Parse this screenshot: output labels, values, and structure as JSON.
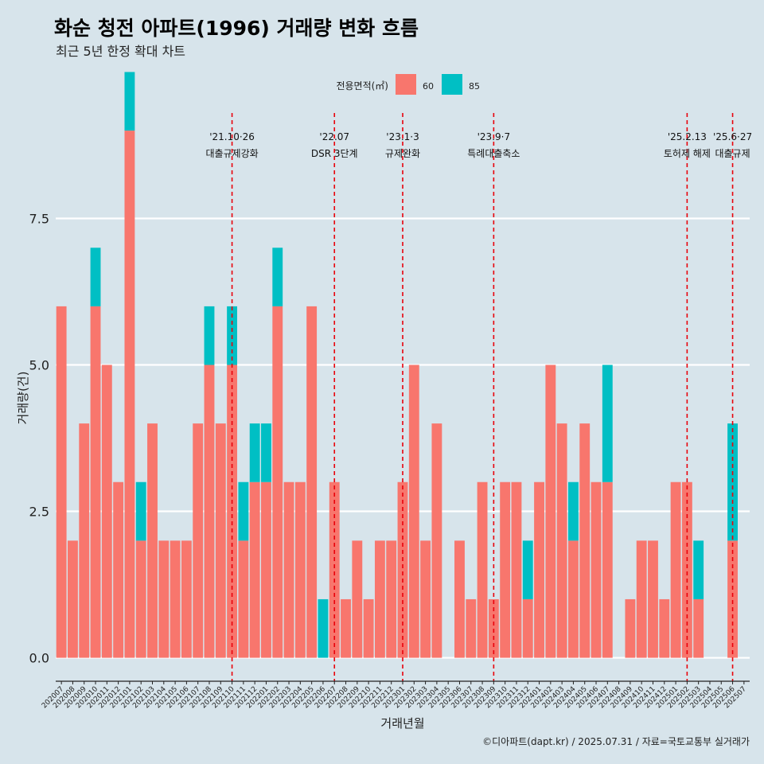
{
  "chart_data": {
    "type": "bar",
    "title": "화순 청전 아파트(1996) 거래량 변화 흐름",
    "subtitle": "최근 5년 한정 확대 차트",
    "xlabel": "거래년월",
    "ylabel": "거래량(건)",
    "caption": "©디아파트(dapt.kr) / 2025.07.31 / 자료=국토교통부 실거래가",
    "legend": {
      "title": "전용면적(㎡)",
      "position": "top",
      "items": [
        {
          "label": "60",
          "color": "#f8766d"
        },
        {
          "label": "85",
          "color": "#00bfc4"
        }
      ]
    },
    "ylim": [
      -0.4,
      9.3
    ],
    "yticks": [
      0.0,
      2.5,
      5.0,
      7.5
    ],
    "ytick_labels": [
      "0.0",
      "2.5",
      "5.0",
      "7.5"
    ],
    "categories": [
      "202007",
      "202008",
      "202009",
      "202010",
      "202011",
      "202012",
      "202101",
      "202102",
      "202103",
      "202104",
      "202105",
      "202106",
      "202107",
      "202108",
      "202109",
      "202110",
      "202111",
      "202112",
      "202201",
      "202202",
      "202203",
      "202204",
      "202205",
      "202206",
      "202207",
      "202208",
      "202209",
      "202210",
      "202211",
      "202212",
      "202301",
      "202302",
      "202303",
      "202304",
      "202305",
      "202306",
      "202307",
      "202308",
      "202309",
      "202310",
      "202311",
      "202312",
      "202401",
      "202402",
      "202403",
      "202404",
      "202405",
      "202406",
      "202407",
      "202408",
      "202409",
      "202410",
      "202411",
      "202412",
      "202501",
      "202502",
      "202503",
      "202504",
      "202505",
      "202506",
      "202507"
    ],
    "series": [
      {
        "name": "60",
        "color": "#f8766d",
        "values": [
          6,
          2,
          4,
          6,
          5,
          3,
          9,
          2,
          4,
          2,
          2,
          2,
          4,
          5,
          4,
          5,
          2,
          3,
          3,
          6,
          3,
          3,
          6,
          0,
          3,
          1,
          2,
          1,
          2,
          2,
          3,
          5,
          2,
          4,
          0,
          2,
          1,
          3,
          1,
          3,
          3,
          1,
          3,
          5,
          4,
          2,
          4,
          3,
          3,
          0,
          1,
          2,
          2,
          1,
          3,
          3,
          1,
          0,
          0,
          2,
          0
        ]
      },
      {
        "name": "85",
        "color": "#00bfc4",
        "values": [
          0,
          0,
          0,
          1,
          0,
          0,
          1,
          1,
          0,
          0,
          0,
          0,
          0,
          1,
          0,
          1,
          1,
          1,
          1,
          1,
          0,
          0,
          0,
          1,
          0,
          0,
          0,
          0,
          0,
          0,
          0,
          0,
          0,
          0,
          0,
          0,
          0,
          0,
          0,
          0,
          0,
          1,
          0,
          0,
          0,
          1,
          0,
          0,
          2,
          0,
          0,
          0,
          0,
          0,
          0,
          0,
          1,
          0,
          0,
          2,
          0
        ]
      }
    ],
    "annotations": [
      {
        "date": "'21.10·26",
        "label": "대출규제강화",
        "category": "202110"
      },
      {
        "date": "'22.07",
        "label": "DSR 3단계",
        "category": "202207"
      },
      {
        "date": "'23.1·3",
        "label": "규제완화",
        "category": "202301"
      },
      {
        "date": "'23.9·7",
        "label": "특례대출축소",
        "category": "202309"
      },
      {
        "date": "'25.2.13",
        "label": "토허제 해제",
        "category": "202502"
      },
      {
        "date": "'25.6·27",
        "label": "대출규제",
        "category": "202506"
      }
    ]
  }
}
